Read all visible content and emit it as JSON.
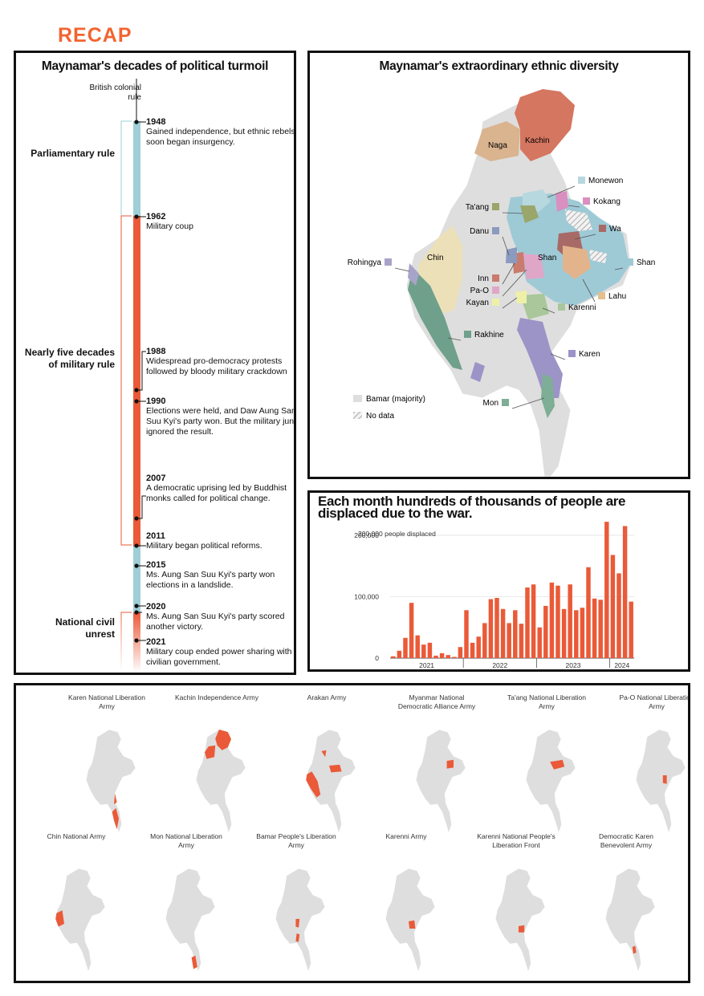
{
  "header": {
    "label": "RECAP",
    "color": "#f26430"
  },
  "colors": {
    "accent": "#ea5a38",
    "teal": "#9ecfd6",
    "grey": "#dedede"
  },
  "timeline": {
    "title": "Maynamar's decades of political turmoil",
    "start_label": "British colonial rule",
    "periods": [
      {
        "label": "Parliamentary rule"
      },
      {
        "label": "Nearly five decades of military rule"
      },
      {
        "label": "National civil unrest"
      }
    ],
    "events": [
      {
        "year": "1948",
        "text": "Gained independence, but ethnic rebels soon began insurgency."
      },
      {
        "year": "1962",
        "text": "Military coup"
      },
      {
        "year": "1988",
        "text": "Widespread pro-democracy protests followed by bloody military crackdown"
      },
      {
        "year": "1990",
        "text": "Elections were held, and Daw Aung San Suu Kyi's party won. But the military junta ignored the result."
      },
      {
        "year": "2007",
        "text": "A democratic uprising led by Buddhist monks called for political change."
      },
      {
        "year": "2011",
        "text": "Military began political reforms."
      },
      {
        "year": "2015",
        "text": "Ms. Aung San Suu Kyi's party won elections in a landslide."
      },
      {
        "year": "2020",
        "text": "Ms. Aung San Suu Kyi's party scored another victory."
      },
      {
        "year": "2021",
        "text": "Military coup ended power sharing with civilian government."
      }
    ]
  },
  "ethnic_map": {
    "title": "Maynamar's extraordinary ethnic diversity",
    "map_labels": {
      "naga": "Naga",
      "kachin": "Kachin",
      "chin": "Chin",
      "shan": "Shan"
    },
    "callouts": [
      {
        "label": "Monewon",
        "color": "#b8d8df"
      },
      {
        "label": "Kokang",
        "color": "#d98fc0"
      },
      {
        "label": "Ta'ang",
        "color": "#9aa66a"
      },
      {
        "label": "Wa",
        "color": "#a86a66"
      },
      {
        "label": "Danu",
        "color": "#8a9bbf"
      },
      {
        "label": "Rohingya",
        "color": "#a8a3c9"
      },
      {
        "label": "Shan",
        "color": "#9ecad6"
      },
      {
        "label": "Inn",
        "color": "#c97b6e"
      },
      {
        "label": "Pa-O",
        "color": "#e0a6c8"
      },
      {
        "label": "Lahu",
        "color": "#e3c08c"
      },
      {
        "label": "Kayan",
        "color": "#eef0a8"
      },
      {
        "label": "Karenni",
        "color": "#a9c79a"
      },
      {
        "label": "Rakhine",
        "color": "#6fa08c"
      },
      {
        "label": "Karen",
        "color": "#9c93c7"
      },
      {
        "label": "Mon",
        "color": "#7eae95"
      }
    ],
    "legend": [
      {
        "label": "Bamar (majority)",
        "color": "#dedede"
      },
      {
        "label": "No data",
        "color": "hatched"
      }
    ]
  },
  "chart_data": {
    "type": "bar",
    "title": "Each month hundreds of thousands of people are displaced due to the war.",
    "annotation": "200,000 people displaced",
    "ylim": [
      0,
      230000
    ],
    "yticks": [
      0,
      100000,
      200000
    ],
    "ytick_labels": [
      "0",
      "100,000",
      "200,000"
    ],
    "year_labels": [
      "2021",
      "2022",
      "2023",
      "2024"
    ],
    "months_per_year": [
      12,
      12,
      12,
      4
    ],
    "values": [
      3000,
      12000,
      33000,
      90000,
      37000,
      22000,
      25000,
      4000,
      8000,
      5000,
      2000,
      18000,
      78000,
      25000,
      35000,
      57000,
      96000,
      98000,
      80000,
      57000,
      78000,
      56000,
      115000,
      120000,
      50000,
      85000,
      123000,
      118000,
      80000,
      120000,
      78000,
      82000,
      148000,
      97000,
      95000,
      222000,
      168000,
      138000,
      215000,
      92000
    ]
  },
  "group_maps": {
    "groups": [
      {
        "name": "Karen National Liberation Army"
      },
      {
        "name": "Kachin Independence Army"
      },
      {
        "name": "Arakan Army"
      },
      {
        "name": "Myanmar National Democratic Alliance Army"
      },
      {
        "name": "Ta'ang National Liberation Army"
      },
      {
        "name": "Pa-O National Liberation Army"
      },
      {
        "name": "Chin National Army"
      },
      {
        "name": "Mon National Liberation Army"
      },
      {
        "name": "Bamar People's Liberation Army"
      },
      {
        "name": "Karenni Army"
      },
      {
        "name": "Karenni National People's Liberation Front"
      },
      {
        "name": "Democratic Karen Benevolent Army"
      }
    ]
  }
}
